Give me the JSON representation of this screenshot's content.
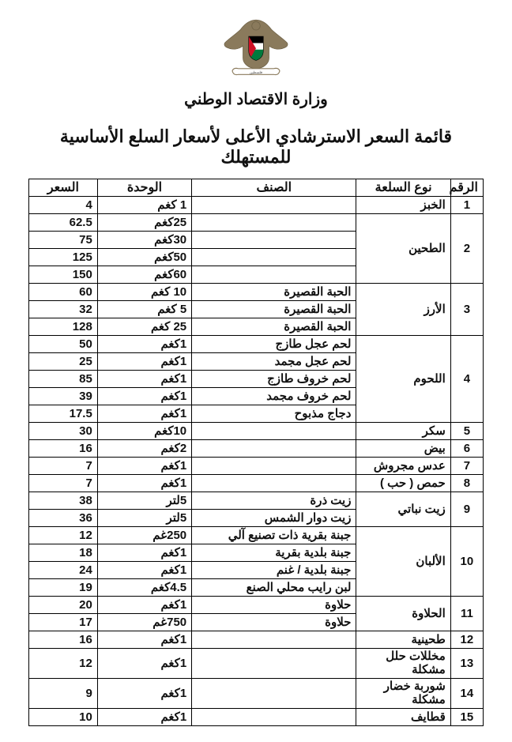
{
  "ministry": "وزارة الاقتصاد الوطني",
  "title": "قائمة السعر الاسترشادي الأعلى لأسعار السلع الأساسية للمستهلك",
  "headers": {
    "num": "الرقم",
    "type": "نوع السلعة",
    "class": "الصنف",
    "unit": "الوحدة",
    "price": "السعر"
  },
  "logo": {
    "eagle_fill": "#8a7a5c",
    "shield_border": "#000000",
    "flag_black": "#000000",
    "flag_white": "#ffffff",
    "flag_green": "#007a3d",
    "flag_red": "#ce1126",
    "banner_fill": "#ffffff",
    "banner_stroke": "#8a7a5c"
  },
  "columns": [
    "num",
    "type",
    "class",
    "unit",
    "price"
  ],
  "rows": [
    {
      "num": "1",
      "type": "الخبز",
      "class": "",
      "unit": "1 كغم",
      "price": "4"
    },
    {
      "num": "2",
      "type": "",
      "class": "",
      "unit": "25كغم",
      "price": "62.5",
      "type_rowspan": 4,
      "type_text": "الطحين"
    },
    {
      "class": "",
      "unit": "30كغم",
      "price": "75"
    },
    {
      "class": "",
      "unit": "50كغم",
      "price": "125"
    },
    {
      "class": "",
      "unit": "60كغم",
      "price": "150"
    },
    {
      "num": "3",
      "type": "الأرز",
      "class": "الحبة القصيرة",
      "unit": "10 كغم",
      "price": "60",
      "type_rowspan": 3
    },
    {
      "class": "الحبة القصيرة",
      "unit": "5 كغم",
      "price": "32"
    },
    {
      "class": "الحبة القصيرة",
      "unit": "25 كغم",
      "price": "128"
    },
    {
      "num": "4",
      "type": "اللحوم",
      "class": "لحم عجل طازج",
      "unit": "1كغم",
      "price": "50",
      "type_rowspan": 5
    },
    {
      "class": "لحم عجل مجمد",
      "unit": "1كغم",
      "price": "25"
    },
    {
      "class": "لحم خروف طازج",
      "unit": "1كغم",
      "price": "85"
    },
    {
      "class": "لحم خروف مجمد",
      "unit": "1كغم",
      "price": "39"
    },
    {
      "class": "دجاج مذبوح",
      "unit": "1كغم",
      "price": "17.5"
    },
    {
      "num": "5",
      "type": "سكر",
      "class": "",
      "unit": "10كغم",
      "price": "30"
    },
    {
      "num": "6",
      "type": "بيض",
      "class": "",
      "unit": "2كغم",
      "price": "16"
    },
    {
      "num": "7",
      "type": "عدس مجروش",
      "class": "",
      "unit": "1كغم",
      "price": "7"
    },
    {
      "num": "8",
      "type": "حمص ( حب )",
      "class": "",
      "unit": "1كغم",
      "price": "7"
    },
    {
      "num": "9",
      "type": "زيت نباتي",
      "class": "زيت ذرة",
      "unit": "5لتر",
      "price": "38",
      "type_rowspan": 2
    },
    {
      "class": "زيت دوار الشمس",
      "unit": "5لتر",
      "price": "36"
    },
    {
      "num": "10",
      "type": "الألبان",
      "class": "جبنة بقرية ذات تصنيع آلي",
      "unit": "250غم",
      "price": "12",
      "type_rowspan": 4
    },
    {
      "class": "جبنة بلدية بقرية",
      "unit": "1كغم",
      "price": "18"
    },
    {
      "class": "جبنة بلدية / غنم",
      "unit": "1كغم",
      "price": "24"
    },
    {
      "class": "لبن رايب محلي الصنع",
      "unit": "4.5كغم",
      "price": "19"
    },
    {
      "num": "11",
      "type": "الحلاوة",
      "class": "حلاوة",
      "unit": "1كغم",
      "price": "20",
      "type_rowspan": 2
    },
    {
      "class": "حلاوة",
      "unit": "750غم",
      "price": "17"
    },
    {
      "num": "12",
      "type": "طحينية",
      "class": "",
      "unit": "1كغم",
      "price": "16"
    },
    {
      "num": "13",
      "type": "مخللات حلل مشكلة",
      "class": "",
      "unit": "1كغم",
      "price": "12"
    },
    {
      "num": "14",
      "type": "شوربة خضار مشكلة",
      "class": "",
      "unit": "1كغم",
      "price": "9"
    },
    {
      "num": "15",
      "type": "قطايف",
      "class": "",
      "unit": "1كغم",
      "price": "10"
    }
  ]
}
